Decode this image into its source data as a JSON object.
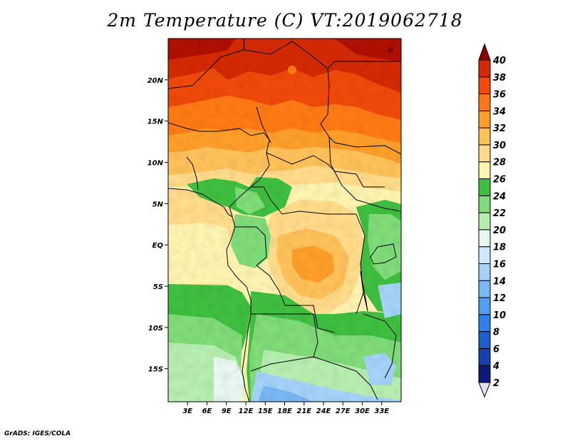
{
  "title": "2m Temperature (C) VT:2019062718",
  "credit": "GrADS: IGES/COLA",
  "map": {
    "lon_range": [
      0,
      36
    ],
    "lat_range": [
      -19,
      25
    ],
    "lat_ticks": [
      {
        "value": 20,
        "label": "20N"
      },
      {
        "value": 15,
        "label": "15N"
      },
      {
        "value": 10,
        "label": "10N"
      },
      {
        "value": 5,
        "label": "5N"
      },
      {
        "value": 0,
        "label": "EQ"
      },
      {
        "value": -5,
        "label": "5S"
      },
      {
        "value": -10,
        "label": "10S"
      },
      {
        "value": -15,
        "label": "15S"
      }
    ],
    "lon_ticks": [
      {
        "value": 3,
        "label": "3E"
      },
      {
        "value": 6,
        "label": "6E"
      },
      {
        "value": 9,
        "label": "9E"
      },
      {
        "value": 12,
        "label": "12E"
      },
      {
        "value": 15,
        "label": "15E"
      },
      {
        "value": 18,
        "label": "18E"
      },
      {
        "value": 21,
        "label": "21E"
      },
      {
        "value": 24,
        "label": "24E"
      },
      {
        "value": 27,
        "label": "27E"
      },
      {
        "value": 30,
        "label": "30E"
      },
      {
        "value": 33,
        "label": "33E"
      }
    ]
  },
  "colorbar": {
    "levels": [
      "2",
      "4",
      "6",
      "8",
      "10",
      "12",
      "14",
      "16",
      "18",
      "20",
      "22",
      "24",
      "26",
      "28",
      "30",
      "32",
      "34",
      "36",
      "38",
      "40"
    ],
    "colors": [
      "#0d1a7a",
      "#1440b0",
      "#1e5fd0",
      "#2e7fe8",
      "#4f9ef0",
      "#78b8f4",
      "#a4d2f8",
      "#cfe9fb",
      "#e8f8f0",
      "#b6eeb0",
      "#7fdc78",
      "#3fbf3f",
      "#fff3b0",
      "#ffdb8a",
      "#ffc15a",
      "#ff9f2a",
      "#ff7a14",
      "#f04a0a",
      "#d42a04",
      "#b01000",
      "#8e0000"
    ],
    "under_color": "#e4e0f4"
  }
}
